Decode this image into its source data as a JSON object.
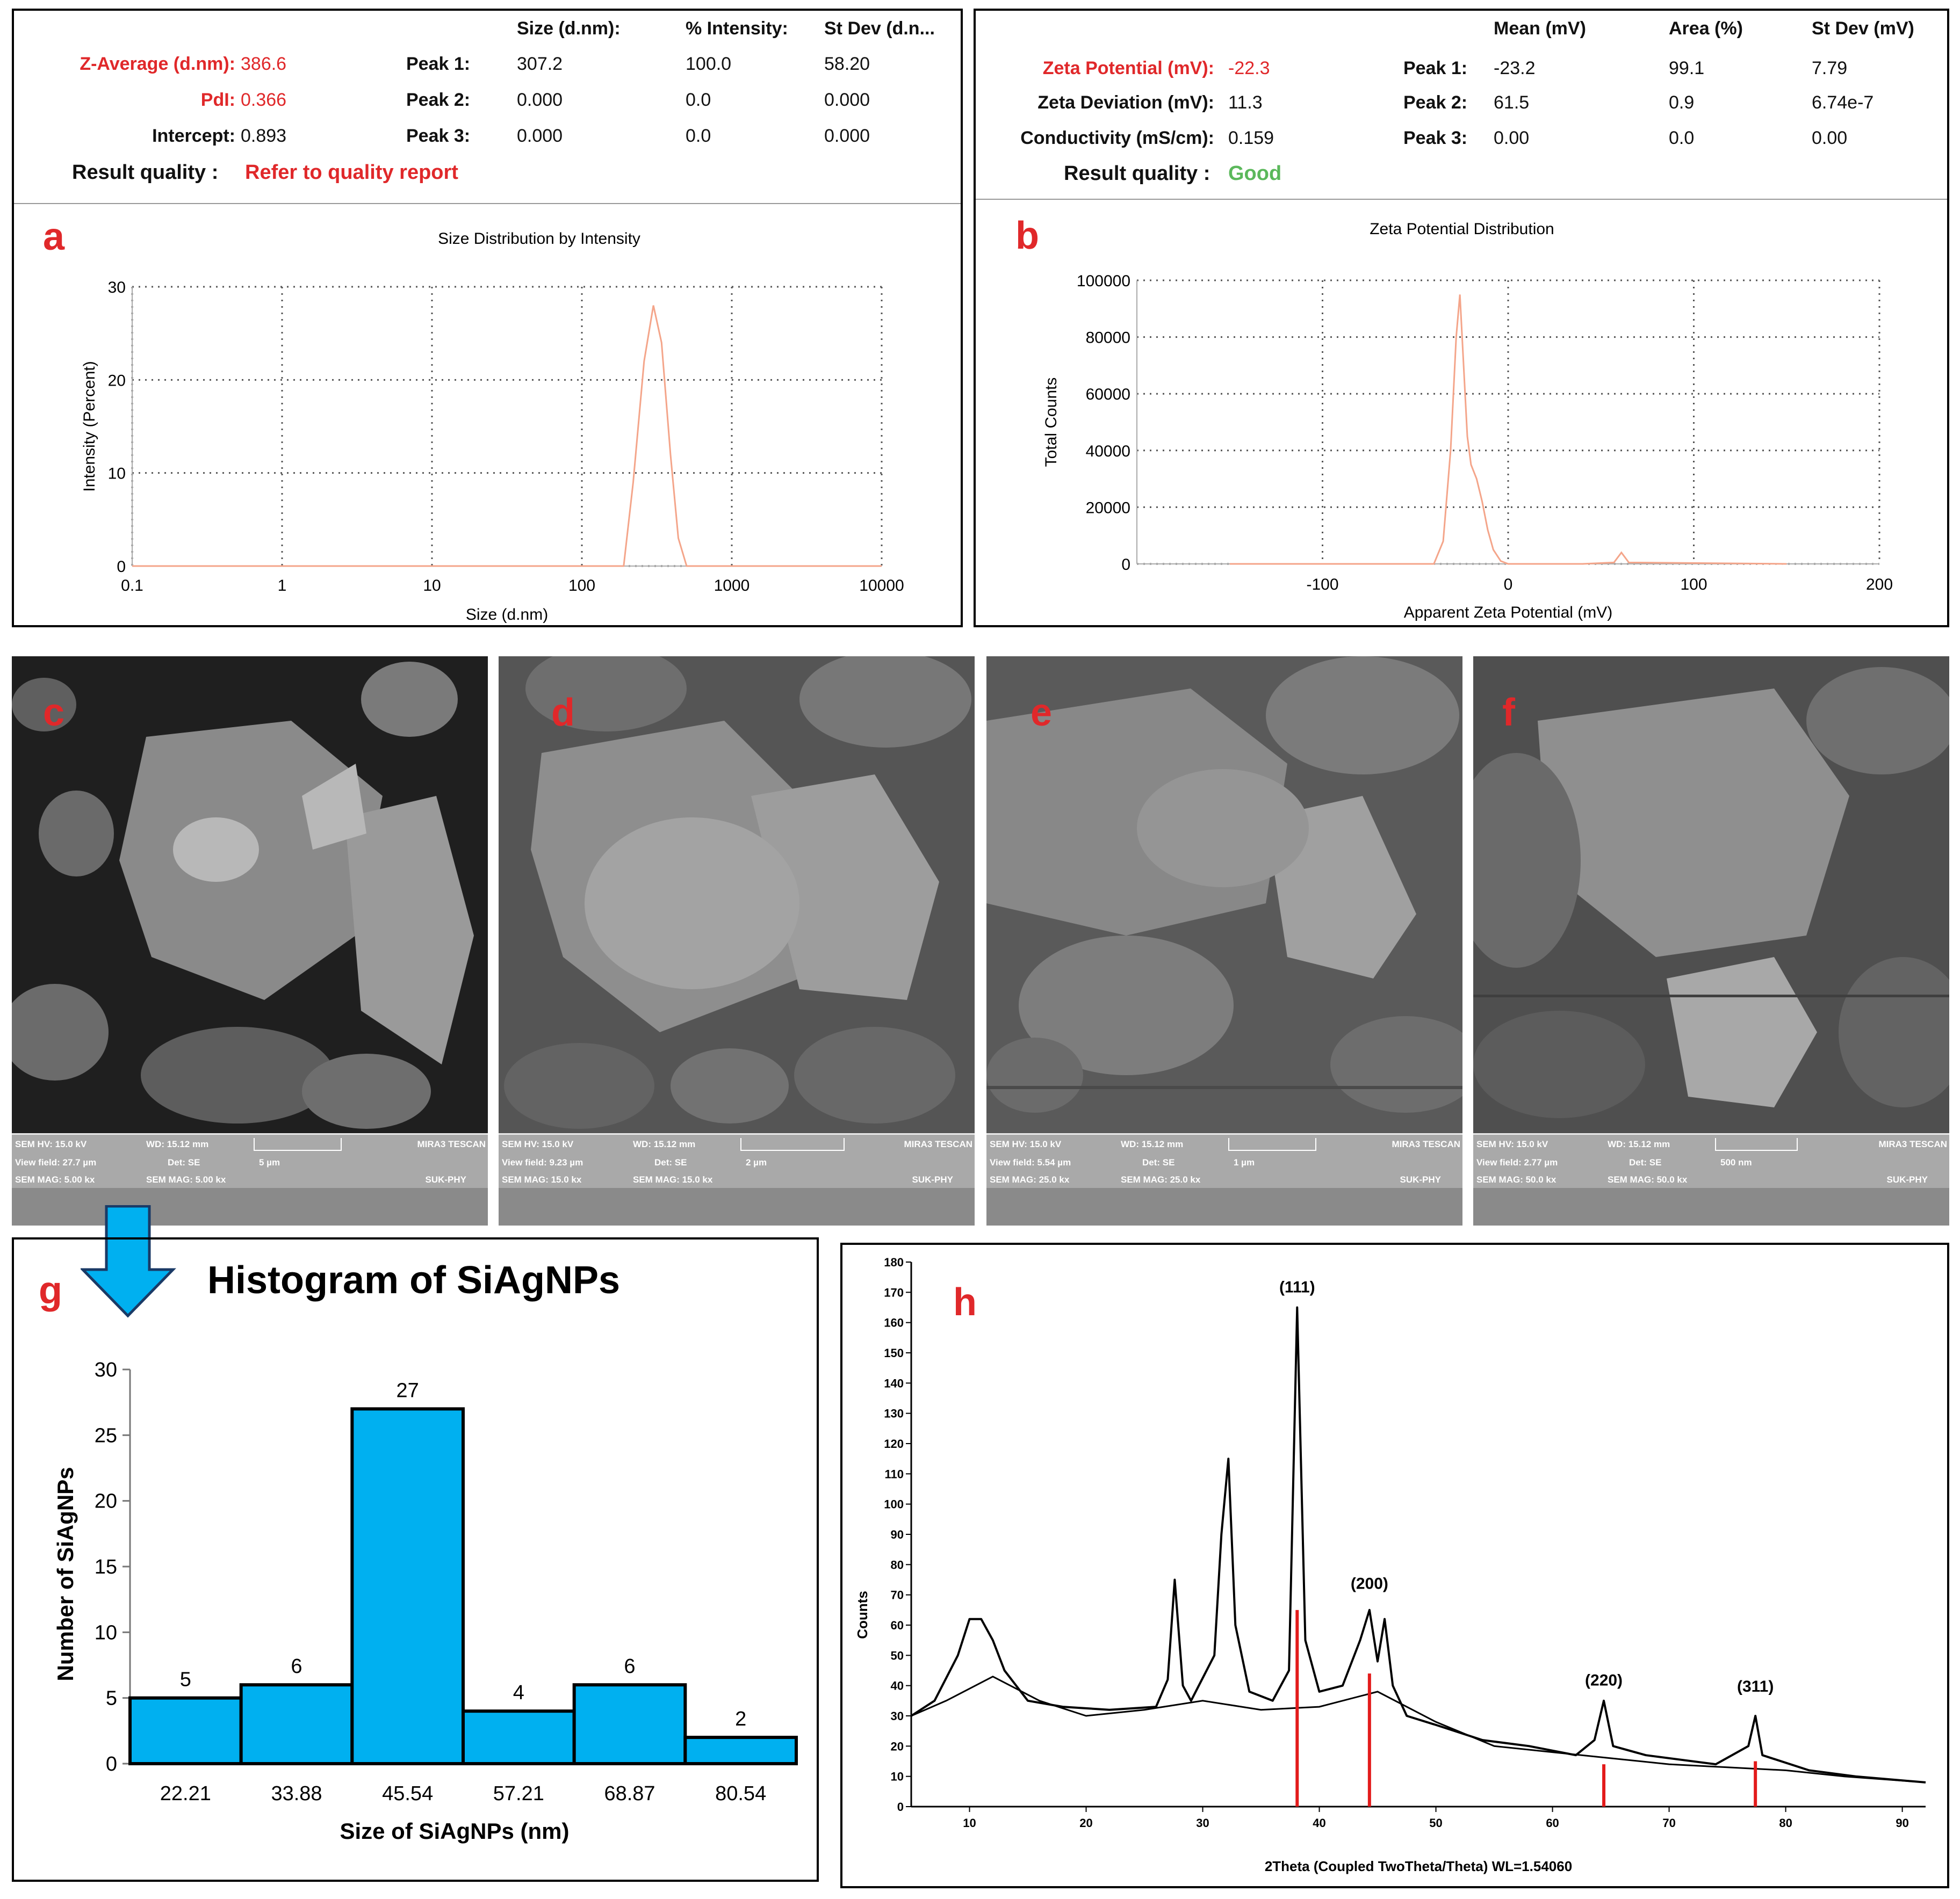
{
  "colors": {
    "accent": "#e0282a",
    "good": "#5bb85b",
    "histogram_bar": "#00b0f0",
    "dls_curve": "#f4a58a",
    "xrd_line": "#000000",
    "xrd_reference": "#e31b1b"
  },
  "panel_a": {
    "label": "a",
    "headers": [
      "Size (d.nm):",
      "% Intensity:",
      "St Dev (d.n..."
    ],
    "rows": [
      {
        "key": "Z-Average (d.nm):",
        "value": "386.6",
        "peak": "Peak 1:",
        "size": "307.2",
        "intensity": "100.0",
        "stdev": "58.20"
      },
      {
        "key": "PdI:",
        "value": "0.366",
        "peak": "Peak 2:",
        "size": "0.000",
        "intensity": "0.0",
        "stdev": "0.000"
      },
      {
        "key": "Intercept:",
        "value": "0.893",
        "peak": "Peak 3:",
        "size": "0.000",
        "intensity": "0.0",
        "stdev": "0.000"
      }
    ],
    "quality_label": "Result quality :",
    "quality_value": "Refer to quality report"
  },
  "panel_b": {
    "label": "b",
    "headers": [
      "Mean (mV)",
      "Area (%)",
      "St Dev (mV)"
    ],
    "rows": [
      {
        "key": "Zeta Potential (mV):",
        "value": "-22.3",
        "peak": "Peak 1:",
        "mean": "-23.2",
        "area": "99.1",
        "stdev": "7.79"
      },
      {
        "key": "Zeta Deviation (mV):",
        "value": "11.3",
        "peak": "Peak 2:",
        "mean": "61.5",
        "area": "0.9",
        "stdev": "6.74e-7"
      },
      {
        "key": "Conductivity (mS/cm):",
        "value": "0.159",
        "peak": "Peak 3:",
        "mean": "0.00",
        "area": "0.0",
        "stdev": "0.00"
      }
    ],
    "quality_label": "Result quality :",
    "quality_value": "Good"
  },
  "sem_images": [
    {
      "label": "c",
      "hv": "SEM HV: 15.0 kV",
      "wd": "WD: 15.12 mm",
      "view": "View field: 27.7 µm",
      "det": "Det: SE",
      "scale": "5 µm",
      "mag1": "SEM MAG: 5.00 kx",
      "mag2": "SEM MAG: 5.00 kx",
      "brand": "MIRA3 TESCAN",
      "lab": "SUK-PHY"
    },
    {
      "label": "d",
      "hv": "SEM HV: 15.0 kV",
      "wd": "WD: 15.12 mm",
      "view": "View field: 9.23 µm",
      "det": "Det: SE",
      "scale": "2 µm",
      "mag1": "SEM MAG: 15.0 kx",
      "mag2": "SEM MAG: 15.0 kx",
      "brand": "MIRA3 TESCAN",
      "lab": "SUK-PHY"
    },
    {
      "label": "e",
      "hv": "SEM HV: 15.0 kV",
      "wd": "WD: 15.12 mm",
      "view": "View field: 5.54 µm",
      "det": "Det: SE",
      "scale": "1 µm",
      "mag1": "SEM MAG: 25.0 kx",
      "mag2": "SEM MAG: 25.0 kx",
      "brand": "MIRA3 TESCAN",
      "lab": "SUK-PHY"
    },
    {
      "label": "f",
      "hv": "SEM HV: 15.0 kV",
      "wd": "WD: 15.12 mm",
      "view": "View field: 2.77 µm",
      "det": "Det: SE",
      "scale": "500 nm",
      "mag1": "SEM MAG: 50.0 kx",
      "mag2": "SEM MAG: 50.0 kx",
      "brand": "MIRA3 TESCAN",
      "lab": "SUK-PHY"
    }
  ],
  "panel_g": {
    "label": "g"
  },
  "panel_h": {
    "label": "h"
  },
  "chart_data": [
    {
      "id": "a",
      "type": "line",
      "title": "Size Distribution by Intensity",
      "xlabel": "Size (d.nm)",
      "ylabel": "Intensity (Percent)",
      "xscale": "log",
      "xlim": [
        0.1,
        10000
      ],
      "ylim": [
        0,
        30
      ],
      "xticks": [
        "0.1",
        "1",
        "10",
        "100",
        "1000",
        "10000"
      ],
      "yticks": [
        "0",
        "10",
        "20",
        "30"
      ],
      "grid": true,
      "x": [
        0.1,
        190,
        220,
        260,
        300,
        340,
        390,
        440,
        500,
        10000
      ],
      "y": [
        0,
        0,
        9,
        22,
        28,
        24,
        12,
        3,
        0,
        0
      ]
    },
    {
      "id": "b",
      "type": "line",
      "title": "Zeta Potential Distribution",
      "xlabel": "Apparent Zeta Potential (mV)",
      "ylabel": "Total Counts",
      "xlim": [
        -200,
        200
      ],
      "ylim": [
        0,
        100000
      ],
      "xticks": [
        "-100",
        "0",
        "100",
        "200"
      ],
      "yticks": [
        "0",
        "20000",
        "40000",
        "60000",
        "80000",
        "100000"
      ],
      "grid": true,
      "x": [
        -150,
        -40,
        -35,
        -31,
        -28,
        -26,
        -24,
        -22,
        -20,
        -17,
        -14,
        -11,
        -8,
        -4,
        0,
        40,
        57,
        61,
        65,
        150
      ],
      "y": [
        0,
        0,
        8000,
        40000,
        80000,
        95000,
        70000,
        45000,
        35000,
        30000,
        22000,
        12000,
        5000,
        1000,
        0,
        0,
        500,
        4000,
        500,
        0
      ]
    },
    {
      "id": "g",
      "type": "bar",
      "title": "Histogram of SiAgNPs",
      "xlabel": "Size of SiAgNPs (nm)",
      "ylabel": "Number of SiAgNPs",
      "categories": [
        "22.21",
        "33.88",
        "45.54",
        "57.21",
        "68.87",
        "80.54"
      ],
      "values": [
        5,
        6,
        27,
        4,
        6,
        2
      ],
      "ylim": [
        0,
        30
      ],
      "yticks": [
        "0",
        "5",
        "10",
        "15",
        "20",
        "25",
        "30"
      ],
      "grid": false
    },
    {
      "id": "h",
      "type": "line",
      "xlabel": "2Theta (Coupled TwoTheta/Theta) WL=1.54060",
      "ylabel": "Counts",
      "xlim": [
        5,
        92
      ],
      "ylim": [
        0,
        180
      ],
      "xticks": [
        "10",
        "20",
        "30",
        "40",
        "50",
        "60",
        "70",
        "80",
        "90"
      ],
      "yticks": [
        "0",
        "10",
        "20",
        "30",
        "40",
        "50",
        "60",
        "70",
        "80",
        "90",
        "100",
        "110",
        "120",
        "130",
        "140",
        "150",
        "160",
        "170",
        "180"
      ],
      "grid": false,
      "x": [
        5,
        7,
        9,
        10,
        11,
        12,
        13,
        15,
        18,
        22,
        26,
        27,
        27.6,
        28.3,
        29,
        31,
        31.6,
        32.2,
        32.8,
        34,
        36,
        37.4,
        38.1,
        38.8,
        40,
        42,
        43.5,
        44.3,
        45,
        45.6,
        46.3,
        47.5,
        50,
        54,
        58,
        62,
        63.6,
        64.4,
        65.2,
        68,
        74,
        76.8,
        77.4,
        78,
        82,
        86,
        92
      ],
      "y": [
        30,
        35,
        50,
        62,
        62,
        55,
        45,
        35,
        33,
        32,
        33,
        42,
        75,
        40,
        35,
        50,
        90,
        115,
        60,
        38,
        35,
        45,
        165,
        55,
        38,
        40,
        55,
        65,
        48,
        62,
        40,
        30,
        27,
        22,
        20,
        17,
        22,
        35,
        20,
        17,
        14,
        20,
        30,
        17,
        12,
        10,
        8
      ],
      "background": {
        "x": [
          5,
          8,
          12,
          16,
          20,
          25,
          30,
          35,
          40,
          45,
          50,
          55,
          60,
          65,
          70,
          75,
          80,
          85,
          92
        ],
        "y": [
          30,
          35,
          43,
          35,
          30,
          32,
          35,
          32,
          33,
          38,
          28,
          20,
          18,
          16,
          14,
          13,
          12,
          10,
          8
        ]
      },
      "reference_lines": [
        {
          "x": 38.1,
          "y": 65
        },
        {
          "x": 44.3,
          "y": 44
        },
        {
          "x": 64.4,
          "y": 14
        },
        {
          "x": 77.4,
          "y": 15
        }
      ],
      "annotations": [
        {
          "text": "(111)",
          "x": 38.1,
          "y": 170
        },
        {
          "text": "(200)",
          "x": 44.3,
          "y": 72
        },
        {
          "text": "(220)",
          "x": 64.4,
          "y": 40
        },
        {
          "text": "(311)",
          "x": 77.4,
          "y": 38
        }
      ]
    }
  ]
}
